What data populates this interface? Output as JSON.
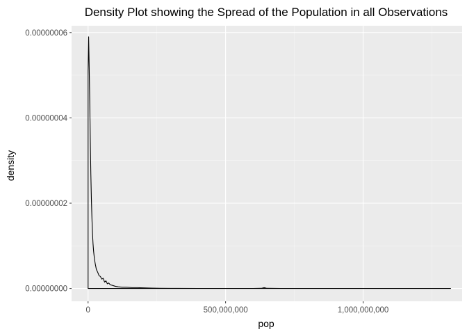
{
  "chart_data": {
    "type": "area",
    "title": "Density Plot showing the Spread of the Population in all Observations",
    "xlabel": "pop",
    "ylabel": "density",
    "xlim": [
      -60000000,
      1360000000
    ],
    "ylim": [
      -3e-09,
      6.16e-08
    ],
    "x_ticks": [
      0,
      500000000,
      1000000000
    ],
    "x_tick_labels": [
      "0",
      "500,000,000",
      "1,000,000,000"
    ],
    "y_ticks": [
      0,
      2e-08,
      4e-08,
      6e-08
    ],
    "y_tick_labels": [
      "0.00000000",
      "0.00000002",
      "0.00000004",
      "0.00000006"
    ],
    "grid": true,
    "legend": "none",
    "colors": {
      "panel": "#ebebeb",
      "grid_major": "#ffffff",
      "grid_minor": "#f5f5f5",
      "line": "#000000"
    },
    "series": [
      {
        "x": [
          60000,
          2000000,
          4000000,
          6000000,
          8000000,
          10000000,
          12000000,
          14000000,
          16000000,
          18000000,
          20000000,
          23000000,
          26000000,
          30000000,
          35000000,
          40000000,
          45000000,
          50000000,
          55000000,
          60000000,
          65000000,
          70000000,
          75000000,
          80000000,
          90000000,
          100000000,
          110000000,
          125000000,
          140000000,
          160000000,
          180000000,
          200000000,
          230000000,
          260000000,
          300000000,
          400000000,
          500000000,
          600000000,
          630000000,
          640000000,
          650000000,
          700000000,
          800000000,
          900000000,
          1000000000,
          1100000000,
          1200000000,
          1318000000
        ],
        "y": [
          5.1e-08,
          5.9e-08,
          5.2e-08,
          4.4e-08,
          3.5e-08,
          2.7e-08,
          2.1e-08,
          1.65e-08,
          1.3e-08,
          1.05e-08,
          8.8e-09,
          7e-09,
          5.8e-09,
          4.5e-09,
          3.8e-09,
          3e-09,
          2.8e-09,
          2.2e-09,
          2.4e-09,
          1.5e-09,
          1.8e-09,
          1.1e-09,
          1.3e-09,
          9e-10,
          7e-10,
          5e-10,
          4e-10,
          3e-10,
          3e-10,
          2e-10,
          2e-10,
          1.5e-10,
          1e-10,
          5e-11,
          3e-11,
          2e-11,
          2e-11,
          2e-11,
          4e-11,
          2e-10,
          4e-11,
          2e-11,
          2e-11,
          2e-11,
          2e-11,
          2e-11,
          2e-11,
          2e-11
        ]
      }
    ]
  }
}
